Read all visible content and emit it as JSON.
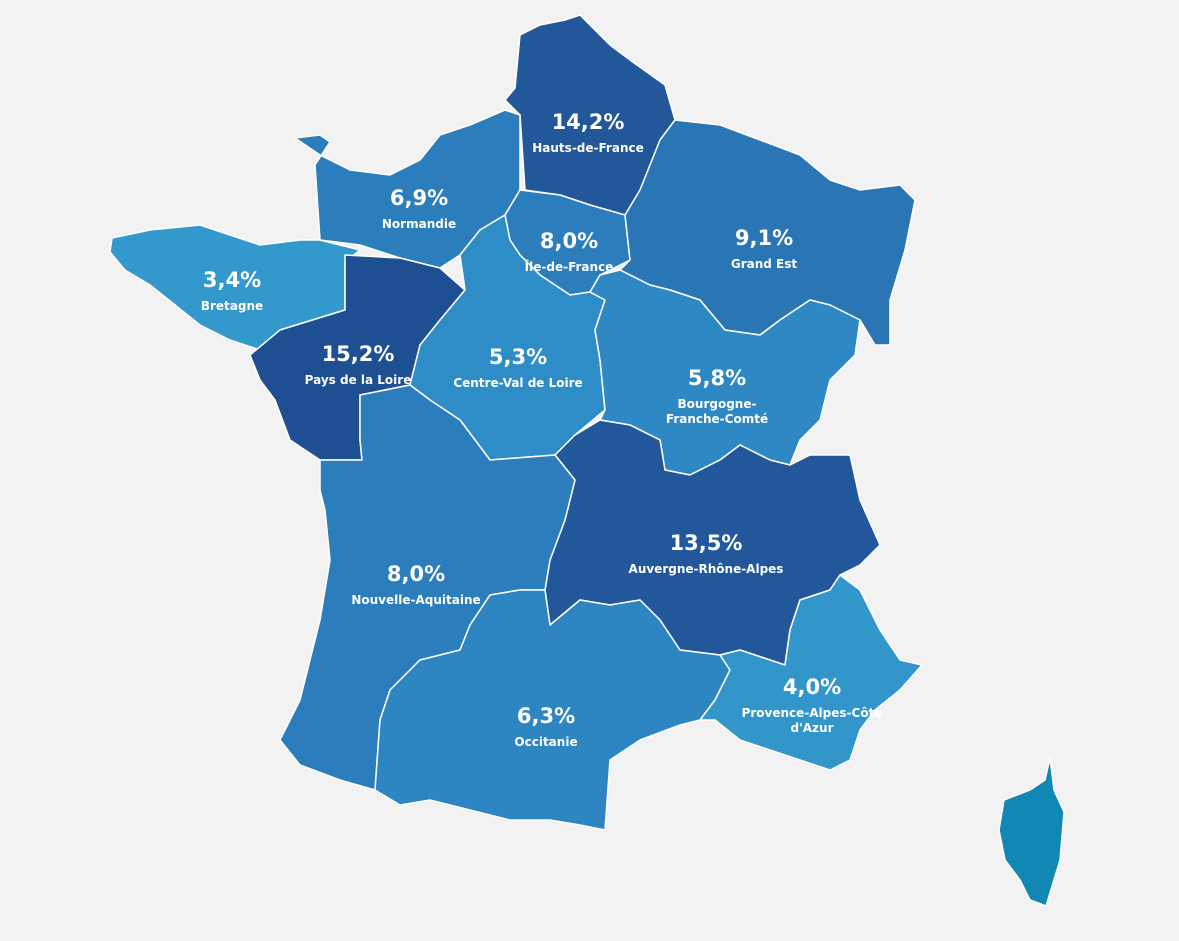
{
  "regions": [
    {
      "name": [
        "Hauts-de-France"
      ],
      "label": "14,2%",
      "value": 14.2,
      "color": "#22579a"
    },
    {
      "name": [
        "Normandie"
      ],
      "label": "6,9%",
      "value": 6.9,
      "color": "#2b7dbb"
    },
    {
      "name": [
        "Île-de-France"
      ],
      "label": "8,0%",
      "value": 8.0,
      "color": "#2b7dbb"
    },
    {
      "name": [
        "Grand Est"
      ],
      "label": "9,1%",
      "value": 9.1,
      "color": "#2a76b4"
    },
    {
      "name": [
        "Bretagne"
      ],
      "label": "3,4%",
      "value": 3.4,
      "color": "#3399cc"
    },
    {
      "name": [
        "Pays de la Loire"
      ],
      "label": "15,2%",
      "value": 15.2,
      "color": "#1f4f93"
    },
    {
      "name": [
        "Centre-Val de Loire"
      ],
      "label": "5,3%",
      "value": 5.3,
      "color": "#2e8dc6"
    },
    {
      "name": [
        "Bourgogne-",
        "Franche-Comté"
      ],
      "label": "5,8%",
      "value": 5.8,
      "color": "#2e88c3"
    },
    {
      "name": [
        "Auvergne-Rhône-Alpes"
      ],
      "label": "13,5%",
      "value": 13.5,
      "color": "#22589b"
    },
    {
      "name": [
        "Nouvelle-Aquitaine"
      ],
      "label": "8,0%",
      "value": 8.0,
      "color": "#2b7dbb"
    },
    {
      "name": [
        "Occitanie"
      ],
      "label": "6,3%",
      "value": 6.3,
      "color": "#2d85c1"
    },
    {
      "name": [
        "Provence-Alpes-Côte",
        "d'Azur"
      ],
      "label": "4,0%",
      "value": 4.0,
      "color": "#3396cb"
    }
  ]
}
